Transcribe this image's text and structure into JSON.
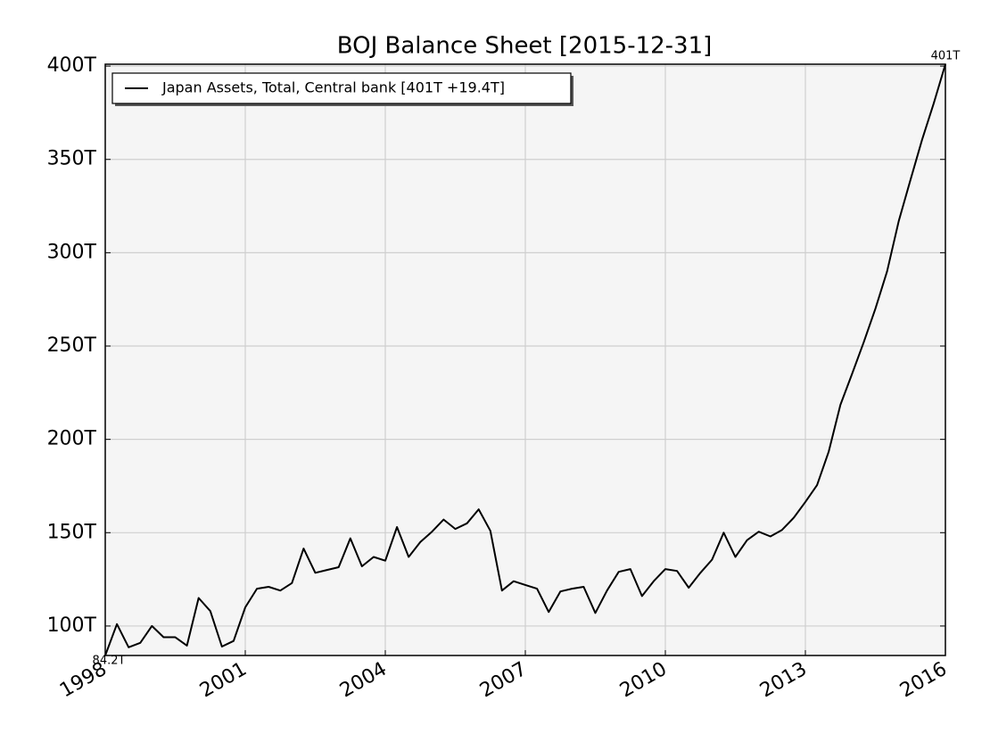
{
  "chart_data": {
    "type": "line",
    "title": "BOJ Balance Sheet  [2015-12-31]",
    "x": [
      1998,
      1998.25,
      1998.5,
      1998.75,
      1999,
      1999.25,
      1999.5,
      1999.75,
      2000,
      2000.25,
      2000.5,
      2000.75,
      2001,
      2001.25,
      2001.5,
      2001.75,
      2002,
      2002.25,
      2002.5,
      2002.75,
      2003,
      2003.25,
      2003.5,
      2003.75,
      2004,
      2004.25,
      2004.5,
      2004.75,
      2005,
      2005.25,
      2005.5,
      2005.75,
      2006,
      2006.25,
      2006.5,
      2006.75,
      2007,
      2007.25,
      2007.5,
      2007.75,
      2008,
      2008.25,
      2008.5,
      2008.75,
      2009,
      2009.25,
      2009.5,
      2009.75,
      2010,
      2010.25,
      2010.5,
      2010.75,
      2011,
      2011.25,
      2011.5,
      2011.75,
      2012,
      2012.25,
      2012.5,
      2012.75,
      2013,
      2013.25,
      2013.5,
      2013.75,
      2014,
      2014.25,
      2014.5,
      2014.75,
      2015,
      2015.25,
      2015.5,
      2015.75,
      2016
    ],
    "series": [
      {
        "name": "Japan Assets, Total, Central bank [401T +19.4T]",
        "color": "#000000",
        "values": [
          84.2,
          101,
          88.6,
          91,
          100,
          94,
          94,
          89.5,
          115,
          108,
          89,
          92,
          110,
          120,
          121,
          119,
          123,
          141.5,
          128.5,
          130,
          131.5,
          147,
          132,
          137,
          135,
          153,
          137,
          145,
          150.5,
          157,
          152,
          155,
          162.5,
          151,
          119,
          124,
          122,
          120,
          107.5,
          118.5,
          120,
          121,
          107,
          119,
          129,
          130.5,
          116,
          124,
          130.5,
          129.5,
          120.5,
          128.5,
          135.5,
          150,
          137,
          146,
          150.5,
          148,
          151.5,
          158,
          166.5,
          175.5,
          193.5,
          218.5,
          235,
          252,
          270,
          290,
          317,
          339,
          360.5,
          380,
          401
        ]
      }
    ],
    "annotations": [
      "84.2T",
      "401T"
    ],
    "xlim": [
      1998,
      2016
    ],
    "xticks": [
      1998,
      2001,
      2004,
      2007,
      2010,
      2013,
      2016
    ],
    "ylim": [
      84.2,
      401
    ],
    "yticks": [
      {
        "value": 100,
        "label": "100T"
      },
      {
        "value": 150,
        "label": "150T"
      },
      {
        "value": 200,
        "label": "200T"
      },
      {
        "value": 250,
        "label": "250T"
      },
      {
        "value": 300,
        "label": "300T"
      },
      {
        "value": 350,
        "label": "350T"
      },
      {
        "value": 400,
        "label": "400T"
      }
    ],
    "grid": true,
    "legend": "upper left"
  }
}
